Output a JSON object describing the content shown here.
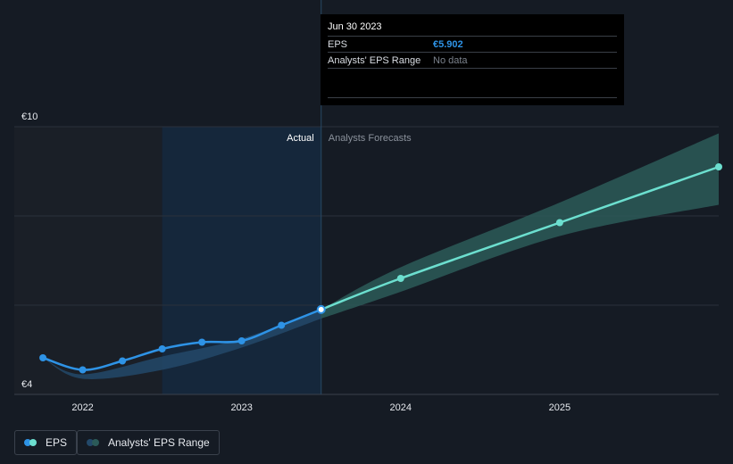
{
  "colors": {
    "background": "#151b24",
    "past_shade": "#1a1f27",
    "actual_region": "#15273b",
    "eps_actual": "#2e93e6",
    "eps_forecast": "#6cdfcf",
    "range_past": "#23496a",
    "range_forecast": "#2b5a58",
    "grid": "#2a313b",
    "divider": "#284864"
  },
  "tooltip": {
    "date": "Jun 30 2023",
    "eps_label": "EPS",
    "eps_value": "€5.902",
    "range_label": "Analysts' EPS Range",
    "range_value": "No data"
  },
  "labels": {
    "actual": "Actual",
    "forecast": "Analysts Forecasts"
  },
  "legend": {
    "eps": "EPS",
    "range": "Analysts' EPS Range"
  },
  "chart_data": {
    "type": "line",
    "ylim": [
      4,
      10
    ],
    "y_tick_labels": [
      {
        "value": 10,
        "label": "€10"
      },
      {
        "value": 4,
        "label": "€4"
      }
    ],
    "x_ticks": [
      {
        "value": 2022.0,
        "label": "2022"
      },
      {
        "value": 2023.0,
        "label": "2023"
      },
      {
        "value": 2024.0,
        "label": "2024"
      },
      {
        "value": 2025.0,
        "label": "2025"
      }
    ],
    "xlim": [
      2021.57,
      2026.0
    ],
    "actual_start": 2022.5,
    "actual_end": 2023.5,
    "series": [
      {
        "name": "EPS",
        "points": [
          {
            "x": 2021.75,
            "y": 4.82
          },
          {
            "x": 2022.0,
            "y": 4.55
          },
          {
            "x": 2022.25,
            "y": 4.75
          },
          {
            "x": 2022.5,
            "y": 5.02
          },
          {
            "x": 2022.75,
            "y": 5.17
          },
          {
            "x": 2023.0,
            "y": 5.2
          },
          {
            "x": 2023.25,
            "y": 5.55
          },
          {
            "x": 2023.5,
            "y": 5.902
          }
        ]
      },
      {
        "name": "EPS Forecast",
        "points": [
          {
            "x": 2023.5,
            "y": 5.902
          },
          {
            "x": 2024.0,
            "y": 6.6
          },
          {
            "x": 2025.0,
            "y": 7.85
          },
          {
            "x": 2026.0,
            "y": 9.1
          }
        ]
      }
    ],
    "range": [
      {
        "x": 2021.75,
        "low": 4.82,
        "high": 4.82
      },
      {
        "x": 2022.0,
        "low": 4.35,
        "high": 4.45
      },
      {
        "x": 2022.5,
        "low": 4.55,
        "high": 4.85
      },
      {
        "x": 2023.0,
        "low": 5.05,
        "high": 5.25
      },
      {
        "x": 2023.5,
        "low": 5.7,
        "high": 5.902
      },
      {
        "x": 2024.0,
        "low": 6.3,
        "high": 6.85
      },
      {
        "x": 2025.0,
        "low": 7.55,
        "high": 8.3
      },
      {
        "x": 2026.0,
        "low": 8.25,
        "high": 9.85
      }
    ]
  }
}
